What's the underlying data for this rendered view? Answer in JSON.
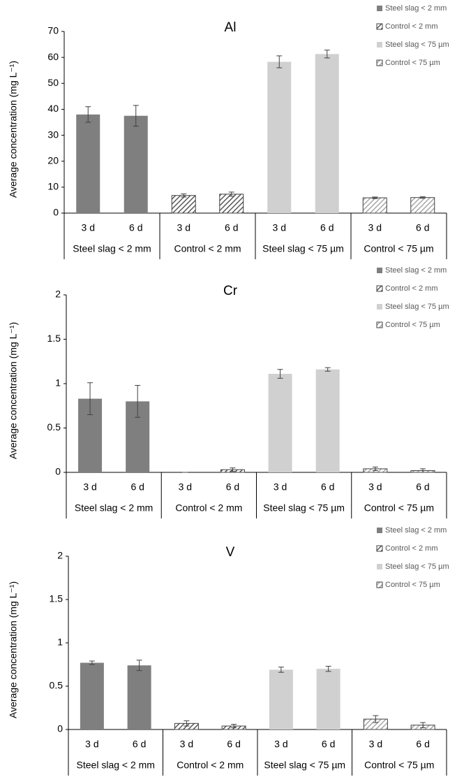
{
  "chart_data": [
    {
      "type": "bar",
      "title": "Al",
      "ylabel": "Average concentration (mg L⁻¹)",
      "categories": [
        "3 d",
        "6 d",
        "3 d",
        "6 d",
        "3 d",
        "6 d",
        "3 d",
        "6 d"
      ],
      "ylim": [
        0,
        70
      ],
      "yticks": [
        0,
        10,
        20,
        30,
        40,
        50,
        60,
        70
      ],
      "series": [
        {
          "name": "Steel slag < 2 mm",
          "color": "#7f7f7f",
          "hatch": false,
          "values": [
            38,
            37.5,
            null,
            null,
            null,
            null,
            null,
            null
          ],
          "errors": [
            3,
            4,
            null,
            null,
            null,
            null,
            null,
            null
          ]
        },
        {
          "name": "Control < 2 mm",
          "color": "#595959",
          "hatch": true,
          "values": [
            null,
            null,
            6.8,
            7.3,
            null,
            null,
            null,
            null
          ],
          "errors": [
            null,
            null,
            0.6,
            0.8,
            null,
            null,
            null,
            null
          ]
        },
        {
          "name": "Steel slag < 75 µm",
          "color": "#d0d0d0",
          "hatch": false,
          "values": [
            null,
            null,
            null,
            null,
            58.3,
            61.3,
            null,
            null
          ],
          "errors": [
            null,
            null,
            null,
            null,
            2.3,
            1.5,
            null,
            null
          ]
        },
        {
          "name": "Control < 75 µm",
          "color": "#a6a6a6",
          "hatch": true,
          "values": [
            null,
            null,
            null,
            null,
            null,
            null,
            5.9,
            6.0
          ],
          "errors": [
            null,
            null,
            null,
            null,
            null,
            null,
            0.3,
            0.3
          ]
        }
      ]
    },
    {
      "type": "bar",
      "title": "Cr",
      "ylabel": "Average concentration (mg L⁻¹)",
      "categories": [
        "3 d",
        "6 d",
        "3 d",
        "6 d",
        "3 d",
        "6 d",
        "3 d",
        "6 d"
      ],
      "ylim": [
        0,
        2
      ],
      "yticks": [
        0,
        0.5,
        1,
        1.5,
        2
      ],
      "series": [
        {
          "name": "Steel slag < 2 mm",
          "color": "#7f7f7f",
          "hatch": false,
          "values": [
            0.83,
            0.8,
            null,
            null,
            null,
            null,
            null,
            null
          ],
          "errors": [
            0.18,
            0.18,
            null,
            null,
            null,
            null,
            null,
            null
          ]
        },
        {
          "name": "Control < 2 mm",
          "color": "#595959",
          "hatch": true,
          "values": [
            null,
            null,
            0,
            0.03,
            null,
            null,
            null,
            null
          ],
          "errors": [
            null,
            null,
            0,
            0.02,
            null,
            null,
            null,
            null
          ]
        },
        {
          "name": "Steel slag < 75 µm",
          "color": "#d0d0d0",
          "hatch": false,
          "values": [
            null,
            null,
            null,
            null,
            1.11,
            1.16,
            null,
            null
          ],
          "errors": [
            null,
            null,
            null,
            null,
            0.05,
            0.02,
            null,
            null
          ]
        },
        {
          "name": "Control < 75 µm",
          "color": "#a6a6a6",
          "hatch": true,
          "values": [
            null,
            null,
            null,
            null,
            null,
            null,
            0.04,
            0.02
          ],
          "errors": [
            null,
            null,
            null,
            null,
            null,
            null,
            0.02,
            0.02
          ]
        }
      ]
    },
    {
      "type": "bar",
      "title": "V",
      "ylabel": "Average concentration (mg L⁻¹)",
      "categories": [
        "3 d",
        "6 d",
        "3 d",
        "6 d",
        "3 d",
        "6 d",
        "3 d",
        "6 d"
      ],
      "ylim": [
        0,
        2
      ],
      "yticks": [
        0,
        0.5,
        1,
        1.5,
        2
      ],
      "series": [
        {
          "name": "Steel slag < 2 mm",
          "color": "#7f7f7f",
          "hatch": false,
          "values": [
            0.77,
            0.74,
            null,
            null,
            null,
            null,
            null,
            null
          ],
          "errors": [
            0.02,
            0.06,
            null,
            null,
            null,
            null,
            null,
            null
          ]
        },
        {
          "name": "Control < 2 mm",
          "color": "#595959",
          "hatch": true,
          "values": [
            null,
            null,
            0.07,
            0.04,
            null,
            null,
            null,
            null
          ],
          "errors": [
            null,
            null,
            0.03,
            0.02,
            null,
            null,
            null,
            null
          ]
        },
        {
          "name": "Steel slag < 75 µm",
          "color": "#d0d0d0",
          "hatch": false,
          "values": [
            null,
            null,
            null,
            null,
            0.69,
            0.7,
            null,
            null
          ],
          "errors": [
            null,
            null,
            null,
            null,
            0.03,
            0.03,
            null,
            null
          ]
        },
        {
          "name": "Control < 75 µm",
          "color": "#a6a6a6",
          "hatch": true,
          "values": [
            null,
            null,
            null,
            null,
            null,
            null,
            0.12,
            0.05
          ],
          "errors": [
            null,
            null,
            null,
            null,
            null,
            null,
            0.04,
            0.03
          ]
        }
      ]
    }
  ]
}
